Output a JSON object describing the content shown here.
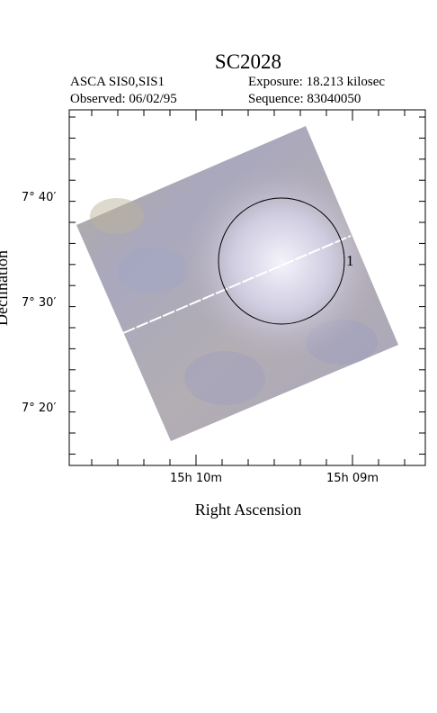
{
  "header": {
    "title": "SC2028",
    "instrument": "ASCA SIS0,SIS1",
    "exposure": "Exposure: 18.213 kilosec",
    "observed": "Observed: 06/02/95",
    "sequence": "Sequence: 83040050"
  },
  "axes": {
    "x_label": "Right Ascension",
    "y_label": "Declination",
    "x_ticks": [
      "15h 10m",
      "15h 09m"
    ],
    "y_ticks": [
      "7° 40′",
      "7° 30′",
      "7° 20′"
    ]
  },
  "regions": [
    {
      "label": "1"
    }
  ]
}
